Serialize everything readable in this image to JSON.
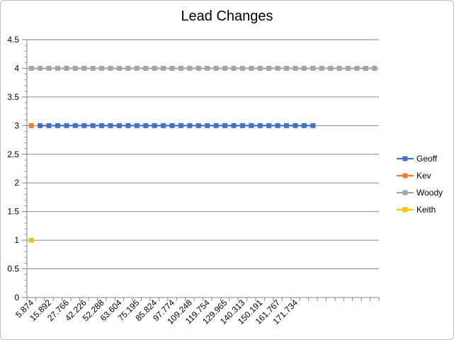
{
  "chart_data": {
    "type": "line",
    "title": "Lead Changes",
    "ylim": [
      0,
      4.5
    ],
    "yticks": [
      "0",
      "0.5",
      "1",
      "1.5",
      "2",
      "2.5",
      "3",
      "3.5",
      "4",
      "4.5"
    ],
    "x_labels": [
      "5.874",
      "15.892",
      "27.766",
      "42.226",
      "52.288",
      "63.604",
      "75.195",
      "85.824",
      "97.774",
      "109.248",
      "119.754",
      "129.965",
      "140.313",
      "150.191",
      "161.767",
      "171.734"
    ],
    "n_categories": 40,
    "label_every": 2,
    "legend_position": "right",
    "grid": "horizontal",
    "series": [
      {
        "name": "Geoff",
        "color": "#4472C4",
        "start": 1,
        "end": 32,
        "value": 3
      },
      {
        "name": "Kev",
        "color": "#ED7D31",
        "start": 0,
        "end": 0,
        "value": 3
      },
      {
        "name": "Woody",
        "color": "#A5A5A5",
        "start": 0,
        "end": 39,
        "value": 4
      },
      {
        "name": "Keith",
        "color": "#FFC000",
        "start": 0,
        "end": 0,
        "value": 1
      }
    ]
  }
}
